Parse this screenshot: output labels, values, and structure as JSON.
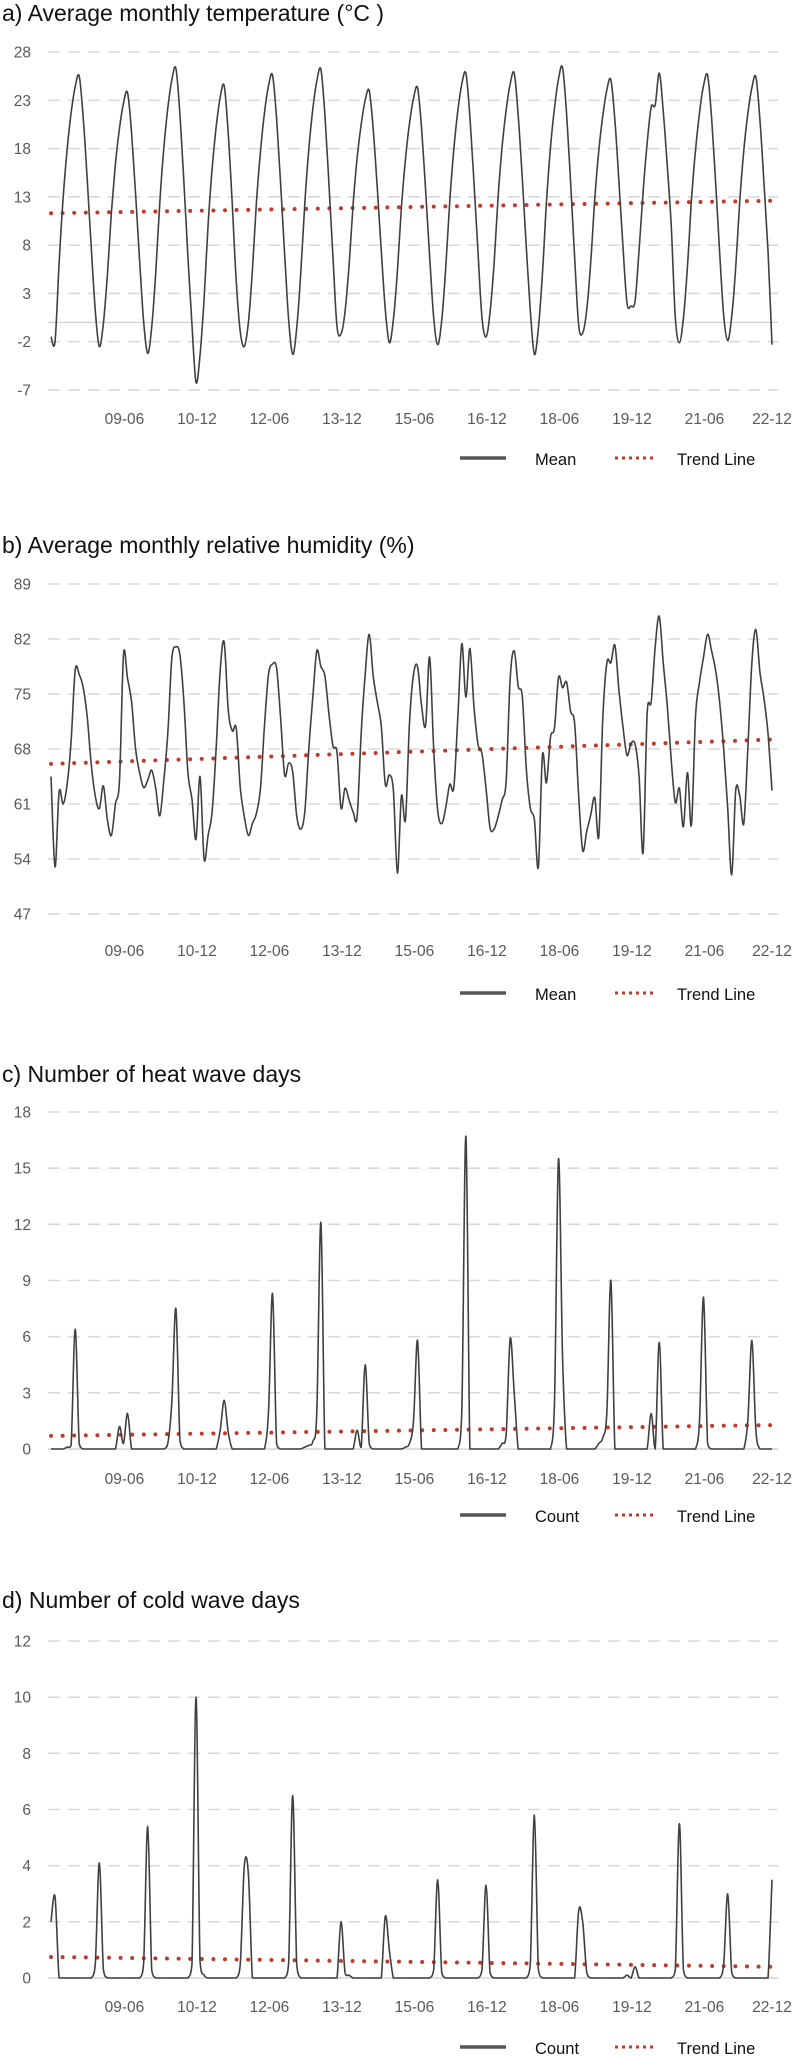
{
  "chart_data": [
    {
      "type": "line",
      "title": "a) Average monthly temperature (°C )",
      "xlabel": "",
      "ylabel": "",
      "ylim": [
        -7,
        28
      ],
      "y_ticks": [
        "28",
        "23",
        "18",
        "13",
        "8",
        "3",
        "-2",
        "-7"
      ],
      "reference_line": 0,
      "x_ticks": [
        "09-06",
        "10-12",
        "12-06",
        "13-12",
        "15-06",
        "16-12",
        "18-06",
        "19-12",
        "21-06",
        "22-12"
      ],
      "grid": true,
      "legend_position": "bottom-right",
      "series": [
        {
          "name": "Mean",
          "color": "#404040",
          "values": [
            -1.5,
            -2.0,
            6.1,
            12.8,
            17.9,
            21.7,
            24.4,
            25.5,
            21.2,
            14.7,
            7.7,
            1.2,
            -2.5,
            -0.1,
            4.9,
            11.4,
            16.4,
            20.1,
            22.7,
            23.8,
            19.6,
            13.3,
            6.4,
            0.1,
            -3.2,
            -0.5,
            5.1,
            12.4,
            18.0,
            22.2,
            25.1,
            26.3,
            21.6,
            14.5,
            6.8,
            -0.3,
            -6.2,
            -3.4,
            2.4,
            10.1,
            15.9,
            20.2,
            23.3,
            24.5,
            19.6,
            12.2,
            4.2,
            -1.0,
            -2.5,
            0.0,
            5.4,
            12.4,
            17.7,
            21.7,
            24.5,
            25.6,
            21.1,
            14.4,
            7.1,
            0.3,
            -3.3,
            -0.6,
            5.0,
            12.3,
            17.9,
            22.1,
            25.0,
            26.2,
            21.5,
            14.4,
            6.7,
            -0.4,
            -1.2,
            1.1,
            5.9,
            12.2,
            17.0,
            20.5,
            23.0,
            24.0,
            20.0,
            13.9,
            7.4,
            1.3,
            -2.1,
            0.3,
            5.3,
            11.9,
            16.9,
            20.6,
            23.2,
            24.3,
            20.1,
            13.7,
            6.9,
            0.5,
            -2.3,
            0.2,
            5.6,
            12.6,
            17.9,
            21.9,
            24.7,
            25.8,
            21.3,
            14.6,
            7.3,
            0.5,
            -1.5,
            1.0,
            6.1,
            13.0,
            18.2,
            22.0,
            24.7,
            25.8,
            21.4,
            14.9,
            7.8,
            1.2,
            -3.3,
            -0.6,
            5.0,
            12.4,
            18.1,
            22.2,
            25.2,
            26.4,
            21.6,
            14.5,
            6.8,
            -0.3,
            -1.1,
            1.3,
            6.2,
            12.8,
            17.8,
            21.4,
            24.1,
            25.1,
            20.9,
            14.6,
            7.8,
            2.0,
            1.7,
            2.2,
            7.5,
            13.5,
            18.5,
            22.3,
            22.5,
            25.8,
            21.9,
            16.2,
            9.9,
            0.5,
            -2.1,
            0.4,
            5.7,
            12.6,
            17.8,
            21.7,
            24.5,
            25.6,
            21.2,
            14.5,
            7.3,
            0.7,
            -1.9,
            0.6,
            5.7,
            12.6,
            17.8,
            21.6,
            24.3,
            25.4,
            21.0,
            14.5,
            7.4,
            -2.3
          ]
        }
      ],
      "trend": {
        "name": "Trend Line",
        "color": "#c0392b",
        "start": 11.3,
        "end": 12.6
      }
    },
    {
      "type": "line",
      "title": "b) Average monthly relative humidity  (%)",
      "xlabel": "",
      "ylabel": "",
      "ylim": [
        47,
        89
      ],
      "y_ticks": [
        "89",
        "82",
        "75",
        "68",
        "61",
        "54",
        "47"
      ],
      "x_ticks": [
        "09-06",
        "10-12",
        "12-06",
        "13-12",
        "15-06",
        "16-12",
        "18-06",
        "19-12",
        "21-06",
        "22-12"
      ],
      "grid": true,
      "legend_position": "bottom-right",
      "series": [
        {
          "name": "Mean",
          "color": "#404040",
          "values": [
            64.5,
            53,
            62.5,
            61,
            63.5,
            69,
            78,
            77.5,
            75.8,
            72,
            66,
            62,
            60.4,
            63.3,
            59,
            57,
            61,
            64,
            80,
            77,
            74,
            68,
            65,
            63.1,
            64,
            65.3,
            63,
            59.5,
            64,
            70,
            79.5,
            81,
            80,
            74,
            65,
            61.6,
            56.5,
            64.5,
            54,
            57,
            60,
            68,
            78,
            81.6,
            73,
            70.3,
            70.6,
            63,
            59.4,
            57,
            58.5,
            59.8,
            63,
            71,
            77.5,
            78.8,
            78.3,
            72,
            64.7,
            66.2,
            65.1,
            59.5,
            57.8,
            60,
            68,
            74.6,
            80.5,
            78.5,
            77.3,
            72.5,
            68.4,
            67.6,
            60.5,
            63,
            61.5,
            60,
            59.4,
            70,
            77.5,
            82.6,
            77.3,
            74,
            70.9,
            63.5,
            64.7,
            62.7,
            52.2,
            62,
            59,
            71.3,
            77.5,
            78.5,
            73.5,
            71,
            79.7,
            68,
            60.2,
            58.5,
            60.5,
            63.5,
            63.1,
            72,
            81.4,
            74.6,
            80.8,
            73.5,
            68.6,
            67.4,
            63,
            58,
            57.8,
            59.4,
            61.5,
            64,
            77,
            80.5,
            76,
            74.7,
            65.5,
            60.5,
            59,
            53,
            67.2,
            63.7,
            69.5,
            70.7,
            77.1,
            75.8,
            76.5,
            72.8,
            71.3,
            62,
            55.1,
            57.5,
            59.6,
            61.8,
            56.9,
            72,
            79,
            79,
            81.2,
            75.5,
            70.8,
            67.2,
            68.7,
            68.6,
            64.5,
            54.8,
            72.4,
            74,
            81,
            84.9,
            79,
            73.5,
            66.5,
            61.2,
            63,
            58.1,
            65,
            58.3,
            72.1,
            76.5,
            79.7,
            82.6,
            80.5,
            78,
            74,
            68,
            60.5,
            52,
            62.7,
            62,
            58.5,
            68,
            79,
            83.2,
            77.8,
            74.5,
            70,
            62.7
          ]
        }
      ],
      "trend": {
        "name": "Trend Line",
        "color": "#c0392b",
        "start": 66.1,
        "end": 69.2
      }
    },
    {
      "type": "line",
      "title": "c) Number of heat wave days",
      "xlabel": "",
      "ylabel": "",
      "ylim": [
        0,
        18
      ],
      "y_ticks": [
        "18",
        "15",
        "12",
        "9",
        "6",
        "3",
        "0"
      ],
      "x_ticks": [
        "09-06",
        "10-12",
        "12-06",
        "13-12",
        "15-06",
        "16-12",
        "18-06",
        "19-12",
        "21-06",
        "22-12"
      ],
      "grid": true,
      "legend_position": "bottom-right",
      "series": [
        {
          "name": "Count",
          "color": "#404040",
          "values": [
            0,
            0,
            0,
            0,
            0.1,
            0.2,
            6.4,
            0.3,
            0,
            0,
            0,
            0,
            0,
            0,
            0,
            0,
            0,
            1.2,
            0.3,
            1.9,
            0,
            0,
            0,
            0,
            0,
            0,
            0,
            0,
            0,
            0.3,
            2.5,
            7.5,
            0.5,
            0,
            0,
            0,
            0,
            0,
            0,
            0,
            0,
            0,
            1.0,
            2.6,
            0.9,
            0,
            0,
            0,
            0,
            0,
            0,
            0,
            0,
            0,
            2.0,
            8.3,
            0.3,
            0,
            0,
            0,
            0,
            0,
            0,
            0.1,
            0.2,
            0.4,
            2.0,
            12.1,
            0,
            0,
            0,
            0,
            0,
            0,
            0,
            0,
            1.0,
            0.1,
            4.5,
            0.3,
            0,
            0,
            0,
            0,
            0,
            0,
            0,
            0,
            0.1,
            0.3,
            1.5,
            5.8,
            0,
            0,
            0,
            0,
            0,
            0,
            0,
            0,
            0,
            0,
            2.0,
            16.7,
            0,
            0,
            0,
            0,
            0,
            0,
            0,
            0,
            0.3,
            0.8,
            5.9,
            3.0,
            0,
            0,
            0,
            0,
            0,
            0,
            0,
            0,
            0,
            2.5,
            15.5,
            5.0,
            0,
            0,
            0,
            0,
            0,
            0,
            0,
            0,
            0.3,
            0.6,
            2.0,
            9.0,
            0,
            0,
            0,
            0,
            0,
            0,
            0,
            0,
            0,
            1.9,
            0,
            5.7,
            0,
            0,
            0,
            0,
            0,
            0,
            0,
            0,
            0,
            1.5,
            8.1,
            0.3,
            0,
            0,
            0,
            0,
            0,
            0,
            0,
            0,
            0,
            1.5,
            5.8,
            1.0,
            0,
            0,
            0,
            0
          ]
        }
      ],
      "trend": {
        "name": "Trend Line",
        "color": "#c0392b",
        "start": 0.7,
        "end": 1.28
      }
    },
    {
      "type": "line",
      "title": "d) Number of cold wave days",
      "xlabel": "",
      "ylabel": "",
      "ylim": [
        0,
        12
      ],
      "y_ticks": [
        "12",
        "10",
        "8",
        "6",
        "4",
        "2",
        "0"
      ],
      "x_ticks": [
        "09-06",
        "10-12",
        "12-06",
        "13-12",
        "15-06",
        "16-12",
        "18-06",
        "19-12",
        "21-06",
        "22-12"
      ],
      "grid": true,
      "legend_position": "bottom-right",
      "series": [
        {
          "name": "Count",
          "color": "#404040",
          "values": [
            2.0,
            2.9,
            0,
            0,
            0,
            0,
            0,
            0,
            0,
            0,
            0,
            0.5,
            4.1,
            0.3,
            0,
            0,
            0,
            0,
            0,
            0,
            0,
            0,
            0,
            0.5,
            5.4,
            0.3,
            0,
            0,
            0,
            0,
            0,
            0,
            0,
            0,
            0,
            0.5,
            10.0,
            0.6,
            0.1,
            0,
            0,
            0,
            0,
            0,
            0,
            0,
            0,
            0.5,
            4.0,
            3.7,
            0,
            0,
            0,
            0,
            0,
            0,
            0,
            0,
            0,
            0.5,
            6.5,
            0.5,
            0,
            0,
            0,
            0,
            0,
            0,
            0,
            0,
            0,
            0,
            2.0,
            0.2,
            0.1,
            0,
            0,
            0,
            0,
            0,
            0,
            0,
            0,
            2.2,
            1.0,
            0,
            0,
            0,
            0,
            0,
            0,
            0,
            0,
            0,
            0,
            0.3,
            3.5,
            0.2,
            0,
            0,
            0,
            0,
            0,
            0,
            0,
            0,
            0,
            0.3,
            3.3,
            0.2,
            0,
            0,
            0,
            0,
            0,
            0,
            0,
            0,
            0,
            0.5,
            5.8,
            0.3,
            0,
            0,
            0,
            0,
            0,
            0,
            0,
            0,
            0,
            2.4,
            2.0,
            0.2,
            0,
            0,
            0,
            0,
            0,
            0,
            0,
            0,
            0,
            0.1,
            0,
            0.4,
            0,
            0,
            0,
            0,
            0,
            0,
            0,
            0,
            0,
            0.3,
            5.5,
            0.3,
            0,
            0,
            0,
            0,
            0,
            0,
            0,
            0,
            0,
            0.5,
            3.0,
            0.2,
            0,
            0,
            0,
            0,
            0,
            0,
            0,
            0,
            0,
            3.5
          ]
        }
      ],
      "trend": {
        "name": "Trend Line",
        "color": "#c0392b",
        "start": 0.75,
        "end": 0.4
      }
    }
  ]
}
